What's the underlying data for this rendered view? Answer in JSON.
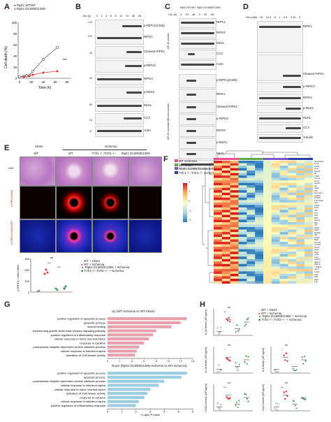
{
  "panel_letters": [
    "A",
    "B",
    "C",
    "D",
    "E",
    "F",
    "G",
    "H"
  ],
  "panelA": {
    "legend": [
      "Ripk1 WT/WT",
      "Ripk1 D138N/D138N"
    ],
    "ylabel": "Cell death (%)",
    "xlabel": "Time (h)",
    "yticks": [
      "100",
      "80",
      "60",
      "40",
      "20",
      "0"
    ],
    "xticks": [
      "0",
      "20",
      "40",
      "60",
      "80"
    ],
    "sig": "***"
  },
  "panelB": {
    "glc_label": "-Glc (h)",
    "lanes": [
      "0",
      "2",
      "4",
      "6",
      "8",
      "12",
      "24",
      "36",
      "48"
    ],
    "proteins": [
      "p-RIPK1(S166)",
      "RIPK1",
      "Cleaved RIPK1",
      "p-RIPK3",
      "RIPK3",
      "p-MLKL",
      "MLKL",
      "CC3",
      "Actin"
    ],
    "kda": [
      "130",
      "100",
      "130",
      "100",
      "43",
      "43",
      "55",
      "55",
      "55",
      "55",
      "15",
      "37"
    ]
  },
  "panelC": {
    "genotypes": [
      "Ripk1 WT/WT",
      "Ripk1 D138N/D138N"
    ],
    "glc_label": "-Glc (h)",
    "lanes": [
      "0",
      "24",
      "48",
      "0",
      "24",
      "48"
    ],
    "fraction_top": "NP-40 soluble",
    "fraction_bottom": "NP-40 insoluble 6M urea soluble",
    "proteins_top": [
      "RIPK1",
      "RIPK3",
      "MLKL",
      "CC3",
      "Actin"
    ],
    "proteins_bottom": [
      "p-RIPK1(S166)",
      "RIPK1",
      "Cleaved RIPK1",
      "p-RIPK3",
      "RIPK3",
      "p-MLKL",
      "MLKL",
      "Actin"
    ]
  },
  "panelD": {
    "glc_label": "Glc (mM)",
    "lanes": [
      "25",
      "12.5",
      "5",
      "1",
      "0.5",
      "0.25",
      "0"
    ],
    "proteins": [
      "RIPK1",
      "Cleaved RIPK1",
      "p-RIPK3",
      "RIPK3",
      "p-MLKL",
      "MLKL",
      "CC3",
      "Tubulin"
    ]
  },
  "panelE": {
    "col_group_sham": "Sham",
    "col_group_isch": "Ischemia",
    "cols": [
      "WT",
      "WT",
      "Tnfr1−/−;Tnfr2−/−",
      "Ripk1 D138N/D138N"
    ],
    "rows": [
      "H&E",
      "p-RIPK1(S166)",
      "p-RIPK1(S166)/DAPI"
    ],
    "quant_ylabel": "p-RIPK1+ cells / field",
    "quant_yticks": [
      "300",
      "200",
      "100",
      "0"
    ],
    "sig": [
      "ns",
      "***",
      "***"
    ],
    "legend": [
      "WT + Sham",
      "WT + Ischemia",
      "Ripk1 D138N/D138N + Ischemia",
      "Tnfr1−/−;Tnfr2−/− + Ischemia"
    ]
  },
  "panelF": {
    "legend": [
      "WT Ischemia",
      "WT Sham",
      "Ripk1 D138N/D138N Ischemia",
      "Tnfr1−/−;Tnfr2−/− Ischemia"
    ],
    "legend_colors": [
      "#e8508c",
      "#5fa84a",
      "#7b59c4",
      "#2a3fa0"
    ],
    "scale_ticks": [
      "2",
      "1",
      "0",
      "-1",
      "-2"
    ],
    "genes": [
      "Serpina3n",
      "Lcn2",
      "Cxcl1",
      "Ccl2",
      "Socs3",
      "Il6",
      "Cd14",
      "Timp1",
      "Osmr",
      "Hspb1",
      "Cp",
      "Gfap",
      "Vim",
      "Serpine1",
      "Lgals3",
      "Ch25h",
      "Tnfrsf12a",
      "Il1r1",
      "Cd44",
      "Ptx3",
      "Il1b",
      "Tlr2",
      "Fas",
      "Mt2",
      "Icam1",
      "Ifit3",
      "Irf7",
      "Isg15",
      "Stat1",
      "Rsad2",
      "Ifit1",
      "Oasl2",
      "Bst2",
      "Usp18",
      "Cxcl10",
      "Gbp2",
      "Iigp1",
      "Rtp4",
      "Ly6a",
      "Lrg1",
      "Cd274",
      "Sbno2",
      "Nfkbia",
      "Tnfaip3",
      "Junb",
      "Fosl1",
      "Atf3",
      "Klf4",
      "Egr1",
      "Fos"
    ]
  },
  "panelG": {
    "up_title": "Up (WT-Ischemia vs WT-Sham)",
    "up_terms": [
      "positive regulation of apoptotic process",
      "apoptotic process",
      "wound healing",
      "transforming growth factor beta receptor signaling pathway",
      "positive regulation of inflammatory response",
      "cellular response to tumor necrosis factor",
      "response to cytokine",
      "proteasomal ubiquitin-dependent protein catabolic process",
      "cellular response to interferon-alpha",
      "activation of JUN kinase activity"
    ],
    "up_values": [
      13.0,
      12.0,
      10.5,
      8.0,
      7.5,
      6.8,
      6.0,
      5.2,
      4.8,
      4.5
    ],
    "up_ticks": [
      "0",
      "2",
      "4",
      "6",
      "8",
      "10",
      "12",
      "14"
    ],
    "down_title": "Down (Ripk1 D138N/D138N-Ischemia vs WT-Ischemia)",
    "down_terms": [
      "positive regulation of apoptotic process",
      "apoptotic process",
      "proteasomal ubiquitin-dependent protein catabolic process",
      "cellular response to interferon-alpha",
      "cellular response to tumor necrosis factor",
      "activation of JUN kinase activity",
      "response to cytokine",
      "cellular response to interferon-alpha",
      "positive regulation of inflammatory response"
    ],
    "down_values": [
      5.6,
      5.2,
      4.0,
      3.6,
      3.0,
      2.8,
      2.6,
      2.2,
      2.0
    ],
    "down_ticks": [
      "0",
      "1",
      "2",
      "3",
      "4",
      "5",
      "6"
    ],
    "xlabel": "−Log10 P-value"
  },
  "panelH": {
    "legend": [
      "WT + Sham",
      "WT + Ischemia",
      "Ripk1 D138N/D138N + Ischemia",
      "Tnfr1−/−;Tnfr2−/− + Ischemia"
    ],
    "plots": [
      {
        "ylabel": "IL-1α levels (10² pg/ml)",
        "sig": [
          "ns",
          "**"
        ]
      },
      {
        "ylabel": "IL-1b levels (10² pg/ml)",
        "sig": [
          "ns",
          "*"
        ]
      },
      {
        "ylabel": "IL-6 levels (10² pg/ml)",
        "sig": [
          "ns",
          "*"
        ]
      },
      {
        "ylabel": "CXCL2 levels (10² pg/ml)",
        "sig": [
          "ns",
          "***"
        ]
      },
      {
        "ylabel": "CCL2 levels (10² pg/ml)",
        "sig": [
          "ns",
          "***"
        ]
      }
    ]
  }
}
